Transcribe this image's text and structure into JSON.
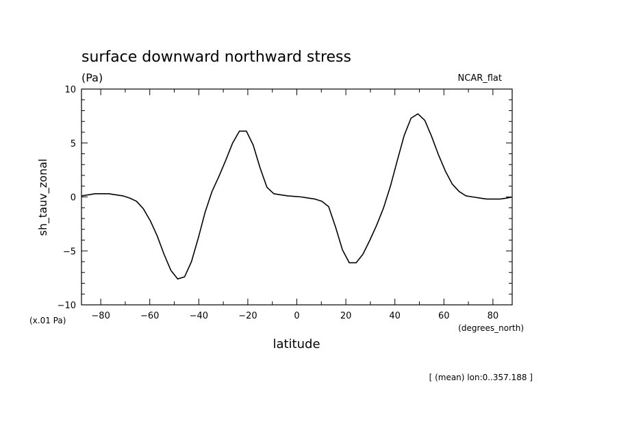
{
  "chart_data": {
    "type": "line",
    "title": "surface downward northward stress",
    "units_label": "(Pa)",
    "model_label": "NCAR_flat",
    "ylabel": "sh_tauv_zonal",
    "y_scale_label": "(x.01 Pa)",
    "xlabel": "latitude",
    "x_units_label": "(degrees_north)",
    "footnote": "[ (mean) lon:0..357.188 ]",
    "xlim": [
      -87.86,
      87.86
    ],
    "ylim": [
      -10,
      10
    ],
    "x_ticks": [
      {
        "value": -80,
        "label": "−80"
      },
      {
        "value": -60,
        "label": "−60"
      },
      {
        "value": -40,
        "label": "−40"
      },
      {
        "value": -20,
        "label": "−20"
      },
      {
        "value": 0,
        "label": "0"
      },
      {
        "value": 20,
        "label": "20"
      },
      {
        "value": 40,
        "label": "40"
      },
      {
        "value": 60,
        "label": "60"
      },
      {
        "value": 80,
        "label": "80"
      }
    ],
    "y_ticks": [
      {
        "value": -10,
        "label": "−10"
      },
      {
        "value": -5,
        "label": "−5"
      },
      {
        "value": 0,
        "label": "0"
      },
      {
        "value": 5,
        "label": "5"
      },
      {
        "value": 10,
        "label": "10"
      }
    ],
    "grid": false,
    "line_color": "#000000",
    "series": [
      {
        "x": [
          -87.9,
          -85.1,
          -82.3,
          -79.5,
          -76.7,
          -73.8,
          -71.0,
          -68.2,
          -65.4,
          -62.6,
          -59.8,
          -57.0,
          -54.2,
          -51.4,
          -48.6,
          -45.8,
          -43.0,
          -40.2,
          -37.4,
          -34.6,
          -31.8,
          -29.0,
          -26.2,
          -23.4,
          -20.6,
          -17.8,
          -15.0,
          -12.2,
          -9.4,
          -6.6,
          -3.8,
          -1.0,
          1.8,
          4.6,
          7.4,
          10.2,
          13.0,
          15.8,
          18.6,
          21.4,
          24.2,
          27.0,
          29.8,
          32.6,
          35.4,
          38.2,
          41.0,
          43.8,
          46.6,
          49.4,
          52.2,
          55.0,
          57.8,
          60.6,
          63.4,
          66.2,
          69.0,
          71.8,
          74.6,
          77.4,
          80.2,
          83.0,
          85.8,
          87.9
        ],
        "y": [
          0.1,
          0.2,
          0.3,
          0.3,
          0.3,
          0.2,
          0.1,
          -0.1,
          -0.4,
          -1.1,
          -2.2,
          -3.6,
          -5.3,
          -6.8,
          -7.6,
          -7.4,
          -6.0,
          -3.8,
          -1.4,
          0.5,
          1.9,
          3.4,
          5.0,
          6.1,
          6.1,
          4.8,
          2.7,
          0.9,
          0.3,
          0.2,
          0.1,
          0.05,
          0.0,
          -0.1,
          -0.2,
          -0.4,
          -0.9,
          -2.8,
          -4.9,
          -6.1,
          -6.1,
          -5.3,
          -4.0,
          -2.6,
          -1.0,
          1.0,
          3.4,
          5.7,
          7.3,
          7.7,
          7.1,
          5.6,
          3.9,
          2.4,
          1.2,
          0.5,
          0.1,
          0.0,
          -0.1,
          -0.2,
          -0.2,
          -0.2,
          -0.1,
          0.0
        ]
      }
    ]
  }
}
